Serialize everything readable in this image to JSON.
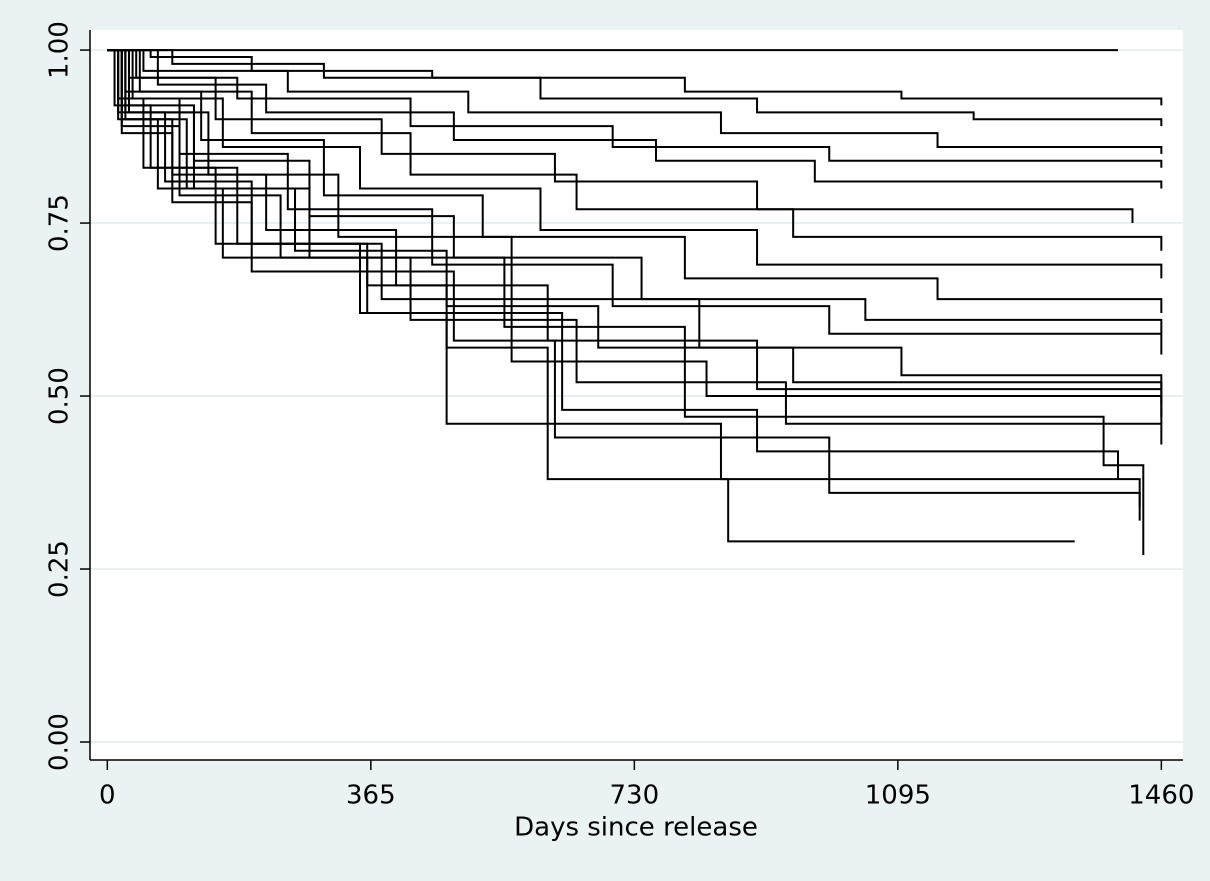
{
  "chart_data": {
    "type": "step",
    "x_label": "Days since release",
    "grid": true,
    "color": "#000000",
    "xlim": [
      -24,
      1490
    ],
    "ylim": [
      -0.026,
      1.029
    ],
    "xticks": [
      0,
      365,
      730,
      1095,
      1460
    ],
    "yticks": [
      {
        "value": 0,
        "label": "0.00"
      },
      {
        "value": 0.25,
        "label": "0.25"
      },
      {
        "value": 0.5,
        "label": "0.50"
      },
      {
        "value": 0.75,
        "label": "0.75"
      },
      {
        "value": 1,
        "label": "1.00"
      }
    ],
    "series": [
      {
        "x": [
          0,
          1400
        ],
        "values": [
          1,
          1
        ]
      },
      {
        "x": [
          0,
          60,
          200,
          450,
          800,
          1100,
          1460
        ],
        "values": [
          1,
          0.99,
          0.97,
          0.96,
          0.94,
          0.93,
          0.92
        ]
      },
      {
        "x": [
          0,
          90,
          300,
          600,
          900,
          1200,
          1460
        ],
        "values": [
          1,
          0.98,
          0.96,
          0.93,
          0.91,
          0.9,
          0.89
        ]
      },
      {
        "x": [
          0,
          50,
          250,
          500,
          850,
          1150,
          1460
        ],
        "values": [
          1,
          0.97,
          0.94,
          0.91,
          0.88,
          0.86,
          0.85
        ]
      },
      {
        "x": [
          0,
          40,
          180,
          420,
          700,
          1000,
          1460
        ],
        "values": [
          1,
          0.96,
          0.93,
          0.89,
          0.86,
          0.84,
          0.83
        ]
      },
      {
        "x": [
          0,
          70,
          220,
          480,
          760,
          980,
          1460
        ],
        "values": [
          1,
          0.95,
          0.91,
          0.87,
          0.84,
          0.81,
          0.8
        ]
      },
      {
        "x": [
          0,
          30,
          150,
          380,
          620,
          900,
          1420
        ],
        "values": [
          1,
          0.96,
          0.9,
          0.85,
          0.81,
          0.77,
          0.75
        ]
      },
      {
        "x": [
          0,
          45,
          200,
          420,
          650,
          950,
          1460
        ],
        "values": [
          1,
          0.94,
          0.88,
          0.82,
          0.77,
          0.73,
          0.71
        ]
      },
      {
        "x": [
          0,
          35,
          160,
          350,
          600,
          900,
          1460
        ],
        "values": [
          1,
          0.93,
          0.86,
          0.8,
          0.74,
          0.69,
          0.67
        ]
      },
      {
        "x": [
          0,
          25,
          130,
          300,
          520,
          800,
          1150,
          1460
        ],
        "values": [
          1,
          0.94,
          0.87,
          0.79,
          0.73,
          0.67,
          0.64,
          0.62
        ]
      },
      {
        "x": [
          0,
          30,
          120,
          280,
          480,
          740,
          1050,
          1460
        ],
        "values": [
          1,
          0.92,
          0.84,
          0.76,
          0.7,
          0.64,
          0.61,
          0.59
        ]
      },
      {
        "x": [
          0,
          20,
          100,
          250,
          450,
          700,
          1000,
          1460
        ],
        "values": [
          1,
          0.93,
          0.85,
          0.77,
          0.69,
          0.63,
          0.59,
          0.56
        ]
      },
      {
        "x": [
          0,
          30,
          140,
          320,
          560,
          820,
          1100,
          1460
        ],
        "values": [
          1,
          0.91,
          0.82,
          0.73,
          0.64,
          0.57,
          0.53,
          0.51
        ]
      },
      {
        "x": [
          0,
          25,
          110,
          260,
          470,
          680,
          950,
          1460
        ],
        "values": [
          1,
          0.9,
          0.8,
          0.71,
          0.63,
          0.57,
          0.52,
          0.49
        ]
      },
      {
        "x": [
          0,
          20,
          90,
          220,
          400,
          610,
          900,
          1460
        ],
        "values": [
          1,
          0.9,
          0.82,
          0.74,
          0.66,
          0.58,
          0.51,
          0.47
        ]
      },
      {
        "x": [
          0,
          15,
          80,
          200,
          380,
          560,
          830,
          1460
        ],
        "values": [
          1,
          0.91,
          0.81,
          0.72,
          0.64,
          0.55,
          0.5,
          0.46
        ]
      },
      {
        "x": [
          0,
          20,
          100,
          240,
          420,
          650,
          940,
          1460
        ],
        "values": [
          1,
          0.89,
          0.79,
          0.7,
          0.61,
          0.52,
          0.46,
          0.43
        ]
      },
      {
        "x": [
          0,
          15,
          70,
          160,
          360,
          630,
          900,
          1400
        ],
        "values": [
          1,
          0.9,
          0.8,
          0.7,
          0.62,
          0.48,
          0.42,
          0.38
        ]
      },
      {
        "x": [
          0,
          20,
          90,
          200,
          480,
          620,
          1000,
          1430
        ],
        "values": [
          1,
          0.88,
          0.78,
          0.68,
          0.58,
          0.44,
          0.36,
          0.34
        ]
      },
      {
        "x": [
          0,
          10,
          60,
          180,
          360,
          470,
          610,
          850,
          1430
        ],
        "values": [
          1,
          0.92,
          0.83,
          0.72,
          0.66,
          0.57,
          0.46,
          0.38,
          0.32
        ]
      },
      {
        "x": [
          0,
          15,
          50,
          150,
          350,
          470,
          610,
          860,
          1340
        ],
        "values": [
          1,
          0.93,
          0.83,
          0.72,
          0.62,
          0.46,
          0.38,
          0.29,
          0.29
        ]
      },
      {
        "x": [
          0,
          25,
          120,
          280,
          550,
          800,
          1380,
          1435
        ],
        "values": [
          1,
          0.91,
          0.8,
          0.7,
          0.6,
          0.47,
          0.4,
          0.27
        ]
      }
    ]
  }
}
